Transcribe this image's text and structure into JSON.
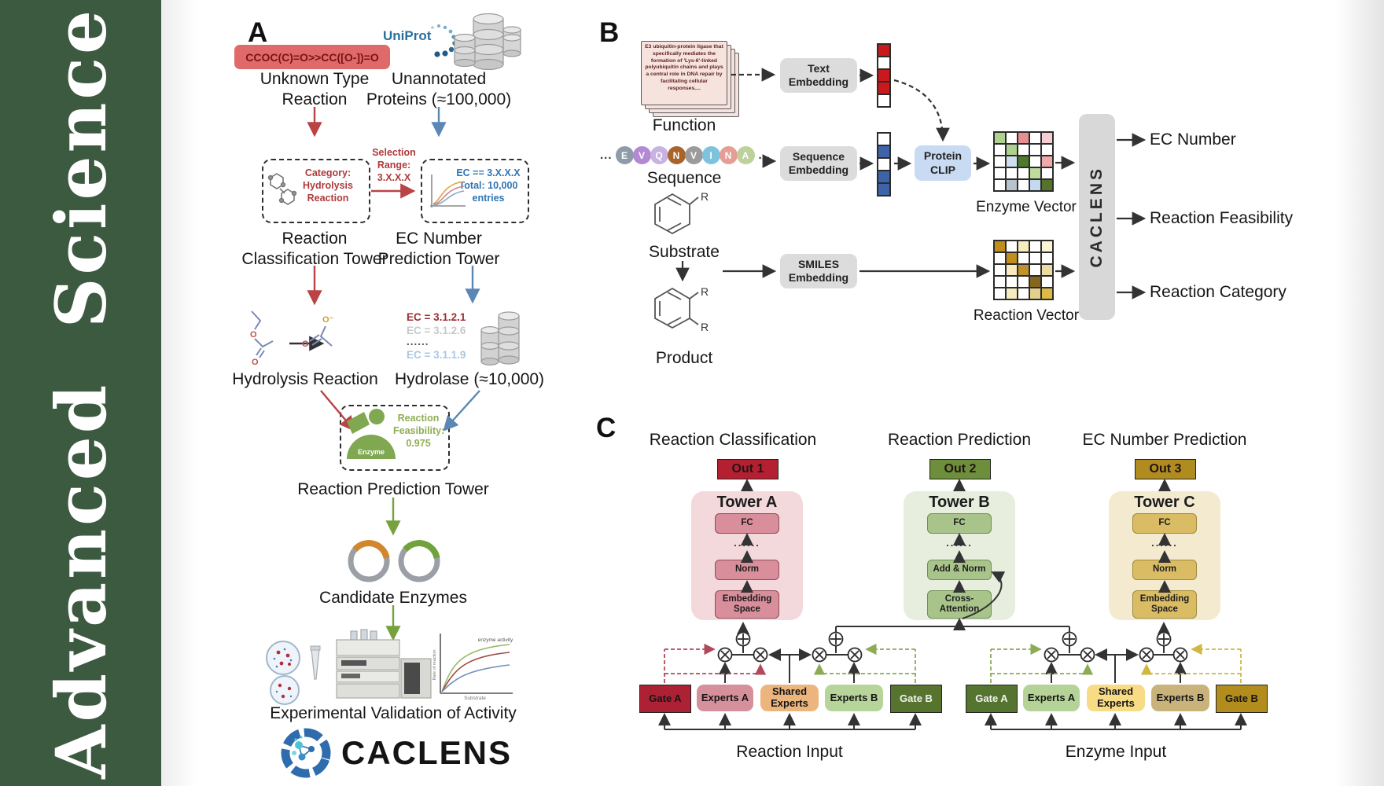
{
  "journal": {
    "vertical_text": "Advanced Science"
  },
  "panelA": {
    "label": "A",
    "smiles": "CCOC(C)=O>>CC([O-])=O",
    "unknown_reaction": "Unknown Type Reaction",
    "uniprot_logo": "UniProt",
    "unannotated_proteins": "Unannotated Proteins (≈100,000)",
    "category_lines": [
      "Category:",
      "Hydrolysis",
      "Reaction"
    ],
    "selection_lines": [
      "Selection",
      "Range:",
      "3.X.X.X"
    ],
    "ec_box_lines": [
      "EC == 3.X.X.X",
      "Total: 10,000",
      "entries"
    ],
    "classification_tower": "Reaction Classification Tower",
    "ec_prediction_tower": "EC Number Prediction Tower",
    "hydrolysis_reaction": "Hydrolysis Reaction",
    "ec_list": [
      "EC = 3.1.2.1",
      "EC = 3.1.2.6",
      "......",
      "EC = 3.1.1.9"
    ],
    "hydrolase": "Hydrolase (≈10,000)",
    "enzyme_icon_label": "Enzyme",
    "feasibility_lines": [
      "Reaction",
      "Feasibility:",
      "0.975"
    ],
    "reaction_prediction_tower": "Reaction Prediction Tower",
    "candidate_enzymes": "Candidate Enzymes",
    "experimental_validation": "Experimental Validation of Activity",
    "activity_plot": {
      "annotation": "enzyme activity",
      "ylabel": "Rate of reaction",
      "xlabel": "Substrate"
    },
    "caclens_wordmark": "CACLENS"
  },
  "panelB": {
    "label": "B",
    "function_card_text": "E3 ubiquitin-protein ligase that specifically mediates the formation of 'Lys-6'-linked polyubiquitin chains and plays a central role in DNA repair by facilitating cellular responses....",
    "function_label": "Function",
    "ellipsis": "...",
    "sequence": [
      {
        "ch": "E",
        "color": "#8e9ba8"
      },
      {
        "ch": "V",
        "color": "#b389d4"
      },
      {
        "ch": "Q",
        "color": "#c7b2e2"
      },
      {
        "ch": "N",
        "color": "#a9642b"
      },
      {
        "ch": "V",
        "color": "#9b9b9b"
      },
      {
        "ch": "I",
        "color": "#7ec3de"
      },
      {
        "ch": "N",
        "color": "#e69d94"
      },
      {
        "ch": "A",
        "color": "#bcd29a"
      }
    ],
    "sequence_label": "Sequence",
    "substrate_label": "Substrate",
    "product_label": "Product",
    "r_group": "R",
    "text_embedding": "Text Embedding",
    "sequence_embedding": "Sequence Embedding",
    "smiles_embedding": "SMILES Embedding",
    "protein_clip": "Protein CLIP",
    "text_vector": [
      "#c9191c",
      "#ffffff",
      "#c9191c",
      "#c9191c",
      "#ffffff"
    ],
    "sequence_vector": [
      "#ffffff",
      "#3e63a8",
      "#ffffff",
      "#3e63a8",
      "#3e63a8"
    ],
    "enzyme_matrix": [
      [
        "#aed18d",
        "#ffffff",
        "#e58f91",
        "#ffffff",
        "#f6cdd3"
      ],
      [
        "#ffffff",
        "#aed18d",
        "#ffffff",
        "#ffffff",
        "#ffffff"
      ],
      [
        "#ffffff",
        "#cfdfef",
        "#4f7a2b",
        "#ffffff",
        "#efa9ab"
      ],
      [
        "#ffffff",
        "#ffffff",
        "#ffffff",
        "#bfdc9a",
        "#ffffff"
      ],
      [
        "#ffffff",
        "#b9c3cb",
        "#ffffff",
        "#c4d8ee",
        "#56732c"
      ]
    ],
    "reaction_matrix": [
      [
        "#bf8e1b",
        "#ffffff",
        "#f6ecc0",
        "#ffffff",
        "#fbf4d5"
      ],
      [
        "#ffffff",
        "#bf8e1b",
        "#ffffff",
        "#ffffff",
        "#ffffff"
      ],
      [
        "#ffffff",
        "#f6ecc0",
        "#c1922c",
        "#ffffff",
        "#ecdca2"
      ],
      [
        "#ffffff",
        "#ffffff",
        "#ffffff",
        "#84671c",
        "#ffffff"
      ],
      [
        "#ffffff",
        "#f6ecc0",
        "#ffffff",
        "#e4cf8f",
        "#ddba45"
      ]
    ],
    "enzyme_vector_label": "Enzyme Vector",
    "reaction_vector_label": "Reaction Vector",
    "caclens_block": "CACLENS",
    "outputs": [
      "EC Number",
      "Reaction Feasibility",
      "Reaction Category"
    ]
  },
  "panelC": {
    "label": "C",
    "headings": [
      "Reaction Classification",
      "Reaction Prediction",
      "EC Number Prediction"
    ],
    "outs": [
      "Out 1",
      "Out 2",
      "Out 3"
    ],
    "dots": "......",
    "towers": [
      {
        "title": "Tower A",
        "fc": "FC",
        "mid": "Norm",
        "base": "Embedding Space"
      },
      {
        "title": "Tower B",
        "fc": "FC",
        "mid": "Add & Norm",
        "base": "Cross-Attention"
      },
      {
        "title": "Tower C",
        "fc": "FC",
        "mid": "Norm",
        "base": "Embedding Space"
      }
    ],
    "moe_blocks": [
      {
        "gate_a": "Gate A",
        "experts_a": "Experts A",
        "shared": "Shared Experts",
        "experts_b": "Experts B",
        "gate_b": "Gate B",
        "input_label": "Reaction Input"
      },
      {
        "gate_a": "Gate A",
        "experts_a": "Experts A",
        "shared": "Shared Experts",
        "experts_b": "Experts B",
        "gate_b": "Gate B",
        "input_label": "Enzyme Input"
      }
    ]
  },
  "colors": {
    "sidebar_green": "#3c5a40",
    "accent_red": "#b94345",
    "accent_blue": "#5b87b5",
    "accent_green": "#76a23e",
    "out1": "#b51f32",
    "out2": "#6d8e3a",
    "out3": "#b08b20",
    "tower_a_bg": "#f3d9dc",
    "tower_b_bg": "#e7eedd",
    "tower_c_bg": "#f3ead0",
    "gate_a_reaction": "#ad2135",
    "experts_a_reaction": "#d5909c",
    "shared_reaction": "#edb57e",
    "experts_b_reaction": "#b7d49a",
    "gate_b_reaction": "#57742e",
    "gate_a_enzyme": "#55742f",
    "experts_a_enzyme": "#b6d397",
    "shared_enzyme": "#f7dc85",
    "experts_b_enzyme": "#c9b37a",
    "gate_b_enzyme": "#b28c1d"
  }
}
